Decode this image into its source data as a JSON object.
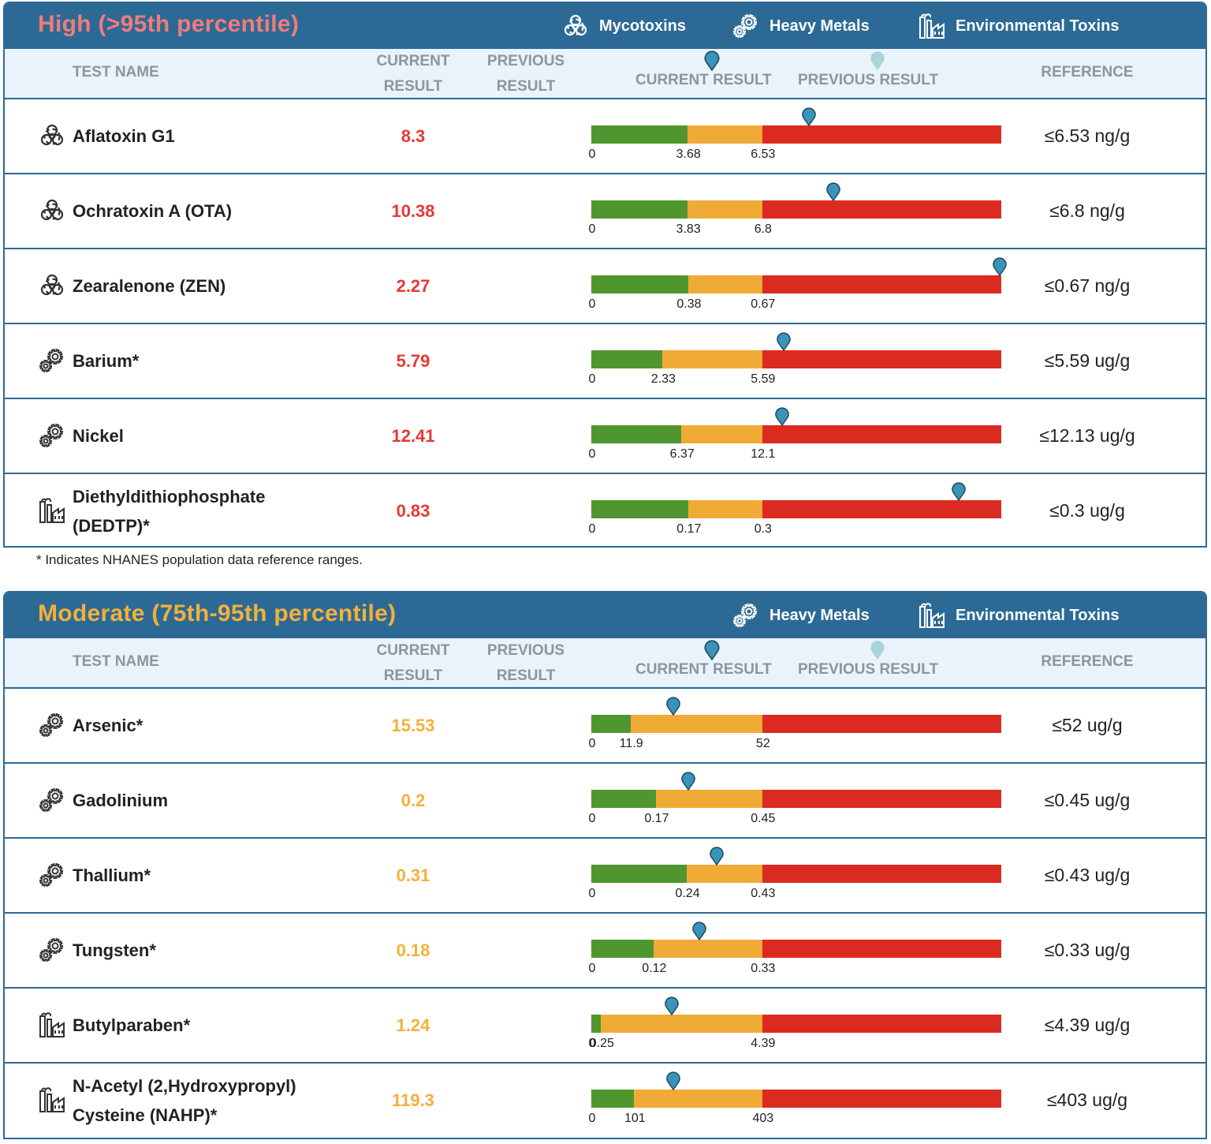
{
  "high": {
    "title": "High (>95th percentile)",
    "legend": [
      "Mycotoxins",
      "Heavy Metals",
      "Environmental Toxins"
    ],
    "columns": {
      "test_name": "TEST NAME",
      "current_result": [
        "CURRENT",
        "RESULT"
      ],
      "previous_result": [
        "PREVIOUS",
        "RESULT"
      ],
      "current_result_legend": "CURRENT RESULT",
      "previous_result_legend": "PREVIOUS RESULT",
      "reference": "REFERENCE"
    },
    "rows": [
      {
        "icon": "biohazard-icon",
        "name": [
          "Aflatoxin G1"
        ],
        "value": "8.3",
        "reference": "≤6.53 ng/g",
        "ticks": [
          "0",
          "3.68",
          "6.53"
        ],
        "marker_fraction": 0.53
      },
      {
        "icon": "biohazard-icon",
        "name": [
          "Ochratoxin A (OTA)"
        ],
        "value": "10.38",
        "reference": "≤6.8 ng/g",
        "ticks": [
          "0",
          "3.83",
          "6.8"
        ],
        "marker_fraction": 0.59
      },
      {
        "icon": "biohazard-icon",
        "name": [
          "Zearalenone (ZEN)"
        ],
        "value": "2.27",
        "reference": "≤0.67 ng/g",
        "ticks": [
          "0",
          "0.38",
          "0.67"
        ],
        "marker_fraction": 1.0
      },
      {
        "icon": "gears-icon",
        "name": [
          "Barium*"
        ],
        "value": "5.79",
        "reference": "≤5.59 ug/g",
        "ticks": [
          "0",
          "2.33",
          "5.59"
        ],
        "marker_fraction": 0.47
      },
      {
        "icon": "gears-icon",
        "name": [
          "Nickel"
        ],
        "value": "12.41",
        "reference": "≤12.13 ug/g",
        "ticks": [
          "0",
          "6.37",
          "12.1"
        ],
        "marker_fraction": 0.465
      },
      {
        "icon": "factory-icon",
        "name": [
          "Diethyldithiophosphate",
          "(DEDTP)*"
        ],
        "value": "0.83",
        "reference": "≤0.3 ug/g",
        "ticks": [
          "0",
          "0.17",
          "0.3"
        ],
        "marker_fraction": 0.897
      }
    ],
    "footnote": "* Indicates NHANES population data reference ranges."
  },
  "moderate": {
    "title": "Moderate (75th-95th percentile)",
    "legend": [
      "Heavy Metals",
      "Environmental Toxins"
    ],
    "columns": {
      "test_name": "TEST NAME",
      "current_result": [
        "CURRENT",
        "RESULT"
      ],
      "previous_result": [
        "PREVIOUS",
        "RESULT"
      ],
      "current_result_legend": "CURRENT RESULT",
      "previous_result_legend": "PREVIOUS RESULT",
      "reference": "REFERENCE"
    },
    "rows": [
      {
        "icon": "gears-icon",
        "name": [
          "Arsenic*"
        ],
        "value": "15.53",
        "reference": "≤52 ug/g",
        "ticks": [
          "0",
          "11.9",
          "52"
        ],
        "marker_fraction": 0.2
      },
      {
        "icon": "gears-icon",
        "name": [
          "Gadolinium"
        ],
        "value": "0.2",
        "reference": "≤0.45 ug/g",
        "ticks": [
          "0",
          "0.17",
          "0.45"
        ],
        "marker_fraction": 0.237
      },
      {
        "icon": "gears-icon",
        "name": [
          "Thallium*"
        ],
        "value": "0.31",
        "reference": "≤0.43 ug/g",
        "ticks": [
          "0",
          "0.24",
          "0.43"
        ],
        "marker_fraction": 0.305
      },
      {
        "icon": "gears-icon",
        "name": [
          "Tungsten*"
        ],
        "value": "0.18",
        "reference": "≤0.33 ug/g",
        "ticks": [
          "0",
          "0.12",
          "0.33"
        ],
        "marker_fraction": 0.263
      },
      {
        "icon": "factory-icon",
        "name": [
          "Butylparaben*"
        ],
        "value": "1.24",
        "reference": "≤4.39 ug/g",
        "ticks": [
          "0",
          "0.25",
          "4.39"
        ],
        "marker_fraction": 0.197
      },
      {
        "icon": "factory-icon",
        "name": [
          "N-Acetyl (2,Hydroxypropyl)",
          "Cysteine (NAHP)*"
        ],
        "value": "119.3",
        "reference": "≤403 ug/g",
        "ticks": [
          "0",
          "101",
          "403"
        ],
        "marker_fraction": 0.2
      }
    ]
  },
  "colors": {
    "header_bg": "#2c6a95",
    "high_title": "#f27b7b",
    "moderate_title": "#f4b03a",
    "high_value": "#e53935",
    "moderate_value": "#f4b03a",
    "bar_green": "#4f962f",
    "bar_yellow": "#f0aa36",
    "bar_red": "#db2b21",
    "marker_current": "#3a93b8",
    "marker_previous": "#a9d4d8"
  }
}
